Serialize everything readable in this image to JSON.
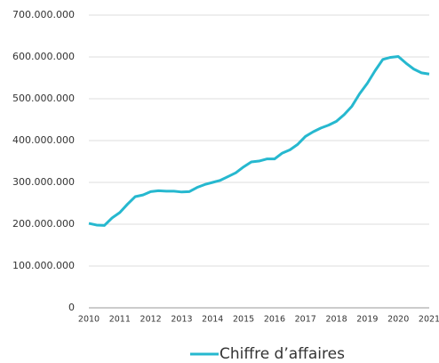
{
  "chart_data": {
    "type": "line",
    "x": [
      2010,
      2010.25,
      2010.5,
      2010.75,
      2011,
      2011.25,
      2011.5,
      2011.75,
      2012,
      2012.25,
      2012.5,
      2012.75,
      2013,
      2013.25,
      2013.5,
      2013.75,
      2014,
      2014.25,
      2014.5,
      2014.75,
      2015,
      2015.25,
      2015.5,
      2015.75,
      2016,
      2016.25,
      2016.5,
      2016.75,
      2017,
      2017.25,
      2017.5,
      2017.75,
      2018,
      2018.25,
      2018.5,
      2018.75,
      2019,
      2019.25,
      2019.5,
      2019.75,
      2020,
      2020.25,
      2020.5,
      2020.75,
      2021
    ],
    "series": [
      {
        "name": "Chiffre d’affaires",
        "color": "#26b8cf",
        "values": [
          202000000,
          198000000,
          197000000,
          215000000,
          228000000,
          248000000,
          266000000,
          270000000,
          278000000,
          280000000,
          279000000,
          279000000,
          277000000,
          278000000,
          288000000,
          295000000,
          300000000,
          305000000,
          314000000,
          323000000,
          337000000,
          349000000,
          351000000,
          356000000,
          356000000,
          370000000,
          378000000,
          391000000,
          410000000,
          421000000,
          430000000,
          437000000,
          446000000,
          462000000,
          482000000,
          512000000,
          537000000,
          567000000,
          594000000,
          599000000,
          601000000,
          585000000,
          571000000,
          562000000,
          559000000
        ]
      }
    ],
    "xlim": [
      2010,
      2021
    ],
    "xticks": [
      2010,
      2011,
      2012,
      2013,
      2014,
      2015,
      2016,
      2017,
      2018,
      2019,
      2020,
      2021
    ],
    "ylim": [
      0,
      700000000
    ],
    "yticks": [
      0,
      {
        "value": 100000000,
        "label": "100.000.000"
      },
      {
        "value": 200000000,
        "label": "200.000.000"
      },
      {
        "value": 300000000,
        "label": "300.000.000"
      },
      {
        "value": 400000000,
        "label": "400.000.000"
      },
      {
        "value": 500000000,
        "label": "500.000.000"
      },
      {
        "value": 600000000,
        "label": "600.000.000"
      },
      {
        "value": 700000000,
        "label": "700.000.000"
      }
    ],
    "grid": true,
    "legend": "bottom"
  }
}
